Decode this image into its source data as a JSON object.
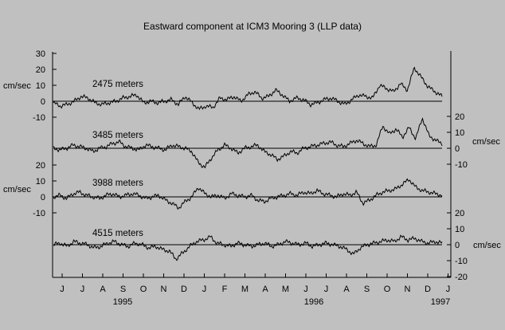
{
  "chart_data": {
    "type": "line",
    "title": "Eastward component at ICM3 Mooring 3 (LLP data)",
    "unit_label": "cm/sec",
    "month_labels": [
      "J",
      "J",
      "A",
      "S",
      "O",
      "N",
      "D",
      "J",
      "F",
      "M",
      "A",
      "M",
      "J",
      "J",
      "A",
      "S",
      "O",
      "N",
      "D",
      "J"
    ],
    "year_labels": [
      "1995",
      "1996",
      "1997"
    ],
    "series": [
      {
        "name": "2475 meters",
        "axis_side": "left",
        "ticks": [
          30,
          20,
          10,
          0,
          -10
        ],
        "tick_labels": [
          "30",
          "20",
          "10",
          "0",
          "-10"
        ],
        "values": [
          -1,
          -3,
          -2,
          0,
          3,
          2,
          -1,
          -2,
          -1,
          0,
          2,
          3,
          4,
          -1,
          0,
          -1,
          0,
          1,
          -2,
          3,
          -1,
          -5,
          -3,
          -4,
          2,
          1,
          3,
          0,
          4,
          6,
          2,
          3,
          7,
          4,
          0,
          2,
          1,
          -2,
          -1,
          1,
          2,
          0,
          -2,
          1,
          4,
          3,
          2,
          10,
          8,
          6,
          11,
          7,
          21,
          15,
          9,
          6,
          3
        ]
      },
      {
        "name": "3485 meters",
        "axis_side": "right",
        "ticks": [
          20,
          10,
          0,
          -10
        ],
        "tick_labels": [
          "20",
          "10",
          "0",
          "-10"
        ],
        "values": [
          0,
          -1,
          0,
          2,
          1,
          0,
          -2,
          0,
          1,
          3,
          4,
          1,
          0,
          -1,
          2,
          1,
          0,
          -1,
          2,
          1,
          0,
          -2,
          -9,
          -12,
          -6,
          -1,
          2,
          0,
          -3,
          0,
          1,
          2,
          -2,
          -4,
          -7,
          -5,
          -2,
          -3,
          0,
          1,
          2,
          3,
          4,
          2,
          1,
          3,
          5,
          3,
          1,
          2,
          14,
          9,
          12,
          7,
          13,
          6,
          19,
          8,
          5,
          3
        ]
      },
      {
        "name": "3988 meters",
        "axis_side": "left",
        "ticks": [
          20,
          10,
          0,
          -10
        ],
        "tick_labels": [
          "20",
          "10",
          "0",
          "-10"
        ],
        "values": [
          0,
          1,
          -1,
          2,
          3,
          1,
          0,
          -1,
          1,
          2,
          0,
          1,
          2,
          1,
          -1,
          0,
          1,
          -2,
          -4,
          -7,
          -3,
          0,
          6,
          2,
          0,
          1,
          -1,
          2,
          1,
          0,
          1,
          -2,
          -3,
          -1,
          0,
          1,
          2,
          1,
          3,
          2,
          4,
          2,
          1,
          0,
          2,
          1,
          3,
          -4,
          -2,
          1,
          3,
          4,
          5,
          8,
          11,
          6,
          4,
          3,
          2,
          1
        ]
      },
      {
        "name": "4515 meters",
        "axis_side": "right",
        "ticks": [
          20,
          10,
          0,
          -10,
          -20
        ],
        "tick_labels": [
          "20",
          "10",
          "0",
          "-10",
          "-20"
        ],
        "values": [
          0,
          1,
          -1,
          2,
          1,
          0,
          -2,
          -1,
          1,
          2,
          0,
          -1,
          1,
          0,
          -2,
          -1,
          -3,
          -4,
          -9,
          -5,
          -1,
          2,
          3,
          5,
          1,
          0,
          -1,
          1,
          0,
          -1,
          0,
          1,
          -1,
          0,
          2,
          1,
          0,
          1,
          -1,
          0,
          1,
          0,
          -1,
          -3,
          -6,
          -2,
          0,
          1,
          2,
          3,
          2,
          5,
          3,
          4,
          2,
          1,
          2,
          1
        ]
      }
    ]
  }
}
